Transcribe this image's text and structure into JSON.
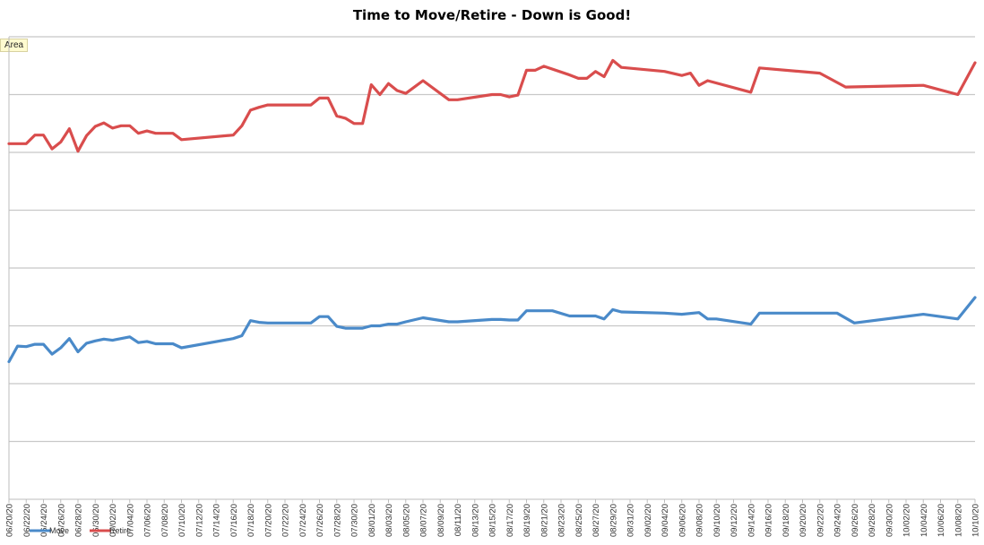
{
  "chart_data": {
    "type": "line",
    "title": "Time to Move/Retire - Down is Good!",
    "field_button": "Area",
    "grid": true,
    "legend_position": "bottom-left",
    "ylim": [
      0,
      8
    ],
    "x_ticks": [
      "06/20/20",
      "06/22/20",
      "06/24/20",
      "06/26/20",
      "06/28/20",
      "06/30/20",
      "07/02/20",
      "07/04/20",
      "07/06/20",
      "07/08/20",
      "07/10/20",
      "07/12/20",
      "07/14/20",
      "07/16/20",
      "07/18/20",
      "07/20/20",
      "07/22/20",
      "07/24/20",
      "07/26/20",
      "07/28/20",
      "07/30/20",
      "08/01/20",
      "08/03/20",
      "08/05/20",
      "08/07/20",
      "08/09/20",
      "08/11/20",
      "08/13/20",
      "08/15/20",
      "08/17/20",
      "08/19/20",
      "08/21/20",
      "08/23/20",
      "08/25/20",
      "08/27/20",
      "08/29/20",
      "08/31/20",
      "09/02/20",
      "09/04/20",
      "09/06/20",
      "09/08/20",
      "09/10/20",
      "09/12/20",
      "09/14/20",
      "09/16/20",
      "09/18/20",
      "09/20/20",
      "09/22/20",
      "09/24/20",
      "09/26/20",
      "09/28/20",
      "09/30/20",
      "10/02/20",
      "10/04/20",
      "10/06/20",
      "10/08/20",
      "10/10/20"
    ],
    "series": [
      {
        "name": "Move",
        "color": "#4a8ac9",
        "points": [
          [
            "06/20/20",
            2.38
          ],
          [
            "06/21/20",
            2.65
          ],
          [
            "06/22/20",
            2.64
          ],
          [
            "06/23/20",
            2.68
          ],
          [
            "06/24/20",
            2.68
          ],
          [
            "06/25/20",
            2.51
          ],
          [
            "06/26/20",
            2.62
          ],
          [
            "06/27/20",
            2.78
          ],
          [
            "06/28/20",
            2.55
          ],
          [
            "06/29/20",
            2.7
          ],
          [
            "06/30/20",
            2.74
          ],
          [
            "07/01/20",
            2.77
          ],
          [
            "07/02/20",
            2.75
          ],
          [
            "07/03/20",
            2.78
          ],
          [
            "07/04/20",
            2.81
          ],
          [
            "07/05/20",
            2.71
          ],
          [
            "07/06/20",
            2.73
          ],
          [
            "07/07/20",
            2.69
          ],
          [
            "07/08/20",
            2.69
          ],
          [
            "07/09/20",
            2.69
          ],
          [
            "07/10/20",
            2.62
          ],
          [
            "07/16/20",
            2.78
          ],
          [
            "07/17/20",
            2.83
          ],
          [
            "07/18/20",
            3.09
          ],
          [
            "07/19/20",
            3.06
          ],
          [
            "07/20/20",
            3.05
          ],
          [
            "07/24/20",
            3.05
          ],
          [
            "07/25/20",
            3.05
          ],
          [
            "07/26/20",
            3.16
          ],
          [
            "07/27/20",
            3.16
          ],
          [
            "07/28/20",
            2.99
          ],
          [
            "07/29/20",
            2.96
          ],
          [
            "07/30/20",
            2.96
          ],
          [
            "07/31/20",
            2.96
          ],
          [
            "08/01/20",
            3.0
          ],
          [
            "08/02/20",
            3.0
          ],
          [
            "08/03/20",
            3.03
          ],
          [
            "08/04/20",
            3.03
          ],
          [
            "08/05/20",
            3.07
          ],
          [
            "08/07/20",
            3.14
          ],
          [
            "08/10/20",
            3.07
          ],
          [
            "08/11/20",
            3.07
          ],
          [
            "08/15/20",
            3.11
          ],
          [
            "08/16/20",
            3.11
          ],
          [
            "08/17/20",
            3.1
          ],
          [
            "08/18/20",
            3.1
          ],
          [
            "08/19/20",
            3.26
          ],
          [
            "08/20/20",
            3.26
          ],
          [
            "08/22/20",
            3.26
          ],
          [
            "08/24/20",
            3.17
          ],
          [
            "08/26/20",
            3.17
          ],
          [
            "08/27/20",
            3.17
          ],
          [
            "08/28/20",
            3.12
          ],
          [
            "08/29/20",
            3.28
          ],
          [
            "08/30/20",
            3.24
          ],
          [
            "09/04/20",
            3.22
          ],
          [
            "09/06/20",
            3.2
          ],
          [
            "09/08/20",
            3.23
          ],
          [
            "09/09/20",
            3.12
          ],
          [
            "09/10/20",
            3.12
          ],
          [
            "09/14/20",
            3.03
          ],
          [
            "09/15/20",
            3.22
          ],
          [
            "09/22/20",
            3.22
          ],
          [
            "09/24/20",
            3.22
          ],
          [
            "09/26/20",
            3.05
          ],
          [
            "10/04/20",
            3.2
          ],
          [
            "10/08/20",
            3.12
          ],
          [
            "10/10/20",
            3.49
          ]
        ]
      },
      {
        "name": "Retire",
        "color": "#d94d4d",
        "points": [
          [
            "06/20/20",
            6.15
          ],
          [
            "06/21/20",
            6.15
          ],
          [
            "06/22/20",
            6.15
          ],
          [
            "06/23/20",
            6.3
          ],
          [
            "06/24/20",
            6.3
          ],
          [
            "06/25/20",
            6.06
          ],
          [
            "06/26/20",
            6.18
          ],
          [
            "06/27/20",
            6.41
          ],
          [
            "06/28/20",
            6.02
          ],
          [
            "06/29/20",
            6.29
          ],
          [
            "06/30/20",
            6.45
          ],
          [
            "07/01/20",
            6.51
          ],
          [
            "07/02/20",
            6.42
          ],
          [
            "07/03/20",
            6.46
          ],
          [
            "07/04/20",
            6.46
          ],
          [
            "07/05/20",
            6.33
          ],
          [
            "07/06/20",
            6.37
          ],
          [
            "07/07/20",
            6.33
          ],
          [
            "07/08/20",
            6.33
          ],
          [
            "07/09/20",
            6.33
          ],
          [
            "07/10/20",
            6.22
          ],
          [
            "07/16/20",
            6.3
          ],
          [
            "07/17/20",
            6.46
          ],
          [
            "07/18/20",
            6.73
          ],
          [
            "07/19/20",
            6.78
          ],
          [
            "07/20/20",
            6.82
          ],
          [
            "07/24/20",
            6.82
          ],
          [
            "07/25/20",
            6.82
          ],
          [
            "07/26/20",
            6.94
          ],
          [
            "07/27/20",
            6.94
          ],
          [
            "07/28/20",
            6.63
          ],
          [
            "07/29/20",
            6.59
          ],
          [
            "07/30/20",
            6.5
          ],
          [
            "07/31/20",
            6.5
          ],
          [
            "08/01/20",
            7.17
          ],
          [
            "08/02/20",
            7.0
          ],
          [
            "08/03/20",
            7.19
          ],
          [
            "08/04/20",
            7.07
          ],
          [
            "08/05/20",
            7.02
          ],
          [
            "08/07/20",
            7.24
          ],
          [
            "08/10/20",
            6.91
          ],
          [
            "08/11/20",
            6.91
          ],
          [
            "08/15/20",
            7.0
          ],
          [
            "08/16/20",
            7.0
          ],
          [
            "08/17/20",
            6.96
          ],
          [
            "08/18/20",
            6.99
          ],
          [
            "08/19/20",
            7.42
          ],
          [
            "08/20/20",
            7.42
          ],
          [
            "08/21/20",
            7.49
          ],
          [
            "08/24/20",
            7.34
          ],
          [
            "08/25/20",
            7.28
          ],
          [
            "08/26/20",
            7.28
          ],
          [
            "08/27/20",
            7.4
          ],
          [
            "08/28/20",
            7.31
          ],
          [
            "08/29/20",
            7.59
          ],
          [
            "08/30/20",
            7.47
          ],
          [
            "09/04/20",
            7.4
          ],
          [
            "09/06/20",
            7.33
          ],
          [
            "09/07/20",
            7.37
          ],
          [
            "09/08/20",
            7.16
          ],
          [
            "09/09/20",
            7.24
          ],
          [
            "09/14/20",
            7.04
          ],
          [
            "09/15/20",
            7.46
          ],
          [
            "09/22/20",
            7.37
          ],
          [
            "09/25/20",
            7.13
          ],
          [
            "10/04/20",
            7.16
          ],
          [
            "10/08/20",
            7.0
          ],
          [
            "10/10/20",
            7.55
          ]
        ]
      }
    ]
  }
}
